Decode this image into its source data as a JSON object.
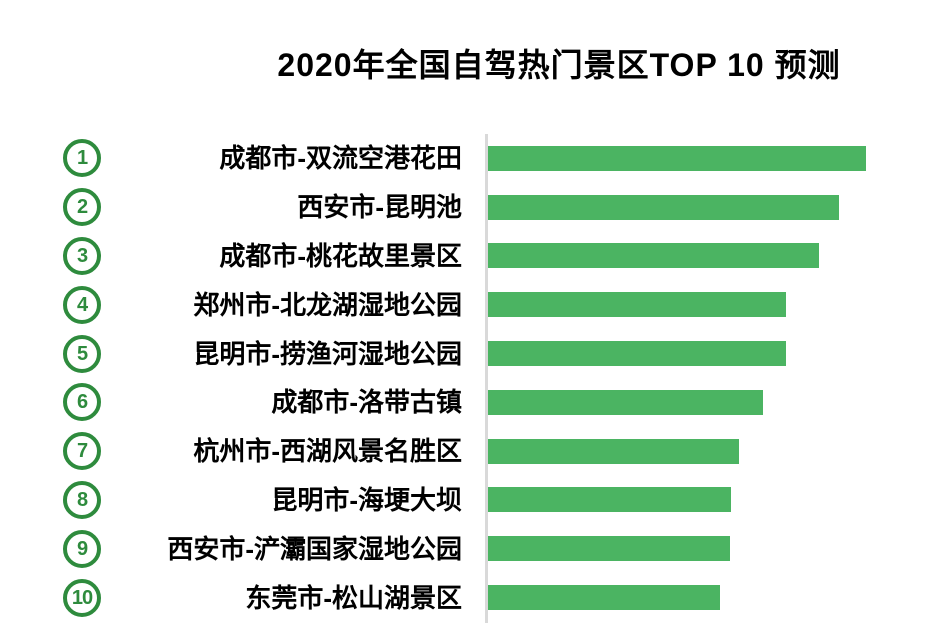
{
  "title": "2020年全国自驾热门景区TOP 10 预测",
  "colors": {
    "bar": "#4bb462",
    "rank_badge": "#2e8b3d",
    "axis_line": "#d9d9d9",
    "title_text": "#000000",
    "label_text": "#000000",
    "page_bg": "#ffffff"
  },
  "chart_data": {
    "type": "bar",
    "orientation": "horizontal",
    "title": "2020年全国自驾热门景区TOP 10 预测",
    "categories": [
      "成都市-双流空港花田",
      "西安市-昆明池",
      "成都市-桃花故里景区",
      "郑州市-北龙湖湿地公园",
      "昆明市-捞渔河湿地公园",
      "成都市-洛带古镇",
      "杭州市-西湖风景名胜区",
      "昆明市-海埂大坝",
      "西安市-浐灞国家湿地公园",
      "东莞市-松山湖景区"
    ],
    "ranks": [
      "1",
      "2",
      "3",
      "4",
      "5",
      "6",
      "7",
      "8",
      "9",
      "10"
    ],
    "values": [
      100,
      92.9,
      87.6,
      78.8,
      78.8,
      72.8,
      66.4,
      64.3,
      64.0,
      61.4
    ],
    "values_note": "No numeric axis, ticks, or data labels are shown in the image; values are relative bar lengths estimated from pixels with the longest bar = 100",
    "value_axis_visible": false,
    "data_labels_visible": false,
    "xlabel": "",
    "ylabel": "",
    "legend": null,
    "grid": false
  }
}
